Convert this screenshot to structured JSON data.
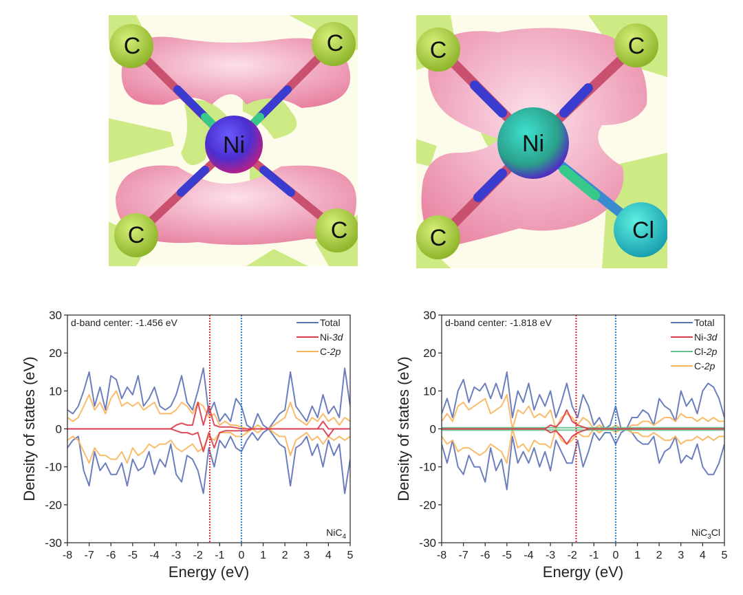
{
  "structures": [
    {
      "name": "NiC4",
      "atoms": [
        "C",
        "C",
        "C",
        "C",
        "Ni"
      ]
    },
    {
      "name": "NiC3Cl",
      "atoms": [
        "C",
        "C",
        "C",
        "Ni",
        "Cl"
      ]
    }
  ],
  "chart_data": [
    {
      "type": "line",
      "xlabel": "Energy (eV)",
      "ylabel": "Density of states (eV)",
      "xlim": [
        -8,
        5
      ],
      "ylim": [
        -30,
        30
      ],
      "xticks": [
        -8,
        -7,
        -6,
        -5,
        -4,
        -3,
        -2,
        -1,
        0,
        1,
        2,
        3,
        4,
        5
      ],
      "yticks": [
        30,
        20,
        10,
        0,
        -10,
        -20,
        -30
      ],
      "annotation": "d-band center: -1.456 eV",
      "d_band_center": -1.456,
      "fermi_level": 0,
      "sample_label": "NiC",
      "sample_sub": "4",
      "sample_tail": "",
      "legend_position": "top-right",
      "x_start": -8,
      "x_step": 0.25,
      "series": [
        {
          "name": "Total",
          "label_main": "Total",
          "label_it": "",
          "color": "#5b6fb5",
          "up": [
            5,
            4,
            6,
            10,
            15,
            6,
            11,
            5,
            14,
            13,
            8,
            11,
            9,
            14,
            6,
            8,
            11,
            6,
            5,
            6,
            9,
            14,
            7,
            5,
            10,
            16,
            4,
            7,
            2,
            4,
            2,
            8,
            6,
            1,
            0,
            4,
            1,
            0,
            2,
            4,
            5,
            15,
            6,
            4,
            2,
            6,
            3,
            9,
            4,
            6,
            3,
            16,
            6
          ],
          "down": [
            -5,
            -3,
            -2,
            -11,
            -15,
            -6,
            -11,
            -9,
            -12,
            -12,
            -9,
            -15,
            -8,
            -11,
            -10,
            -6,
            -12,
            -8,
            -10,
            -4,
            -12,
            -14,
            -7,
            -8,
            -11,
            -17,
            -5,
            -10,
            -3,
            -5,
            -2,
            -5,
            -6,
            -3,
            -1,
            -3,
            -1,
            0,
            -2,
            -4,
            -5,
            -15,
            -5,
            -4,
            -2,
            -7,
            -4,
            -10,
            -3,
            -7,
            -4,
            -17,
            -8
          ]
        },
        {
          "name": "C-2p",
          "label_main": "C-",
          "label_it": "2p",
          "color": "#f9b45a",
          "up": [
            3,
            2,
            3,
            6,
            9,
            5,
            7,
            4,
            8,
            10,
            6,
            7,
            6,
            7,
            5,
            6,
            7,
            4,
            4,
            4,
            5,
            7,
            6,
            4,
            7,
            6,
            3,
            4,
            1,
            2,
            1,
            1,
            0.5,
            0,
            0,
            1,
            0,
            0,
            1,
            2,
            3,
            7,
            3,
            2,
            1,
            3,
            2,
            4,
            2,
            3,
            1,
            3,
            2
          ],
          "down": [
            -3,
            -2,
            -3,
            -6,
            -9,
            -5,
            -7,
            -7,
            -8,
            -8,
            -6,
            -9,
            -5,
            -7,
            -6,
            -4,
            -5,
            -4,
            -4,
            -3,
            -5,
            -6,
            -5,
            -4,
            -6,
            -5,
            -2,
            -3,
            -1,
            -1,
            -1,
            -2,
            -2,
            -1,
            0,
            -1,
            0,
            0,
            -1,
            -2,
            -2,
            -7,
            -3,
            -2,
            -1,
            -3,
            -2,
            -4,
            -2,
            -3,
            -2,
            -3,
            -2
          ]
        },
        {
          "name": "Ni-3d",
          "label_main": "Ni-",
          "label_it": "3d",
          "color": "#d9394a",
          "up": [
            0,
            0,
            0,
            0,
            0,
            0,
            0,
            0,
            0,
            0,
            0,
            0,
            0,
            0,
            0,
            0,
            0,
            0,
            0,
            0,
            1,
            1.5,
            1,
            1,
            7,
            1,
            6,
            1,
            0.5,
            0.5,
            0.5,
            0.3,
            0,
            0,
            0,
            0,
            0,
            0,
            0,
            0,
            0,
            0,
            0,
            0,
            0,
            0,
            0,
            2,
            0,
            0,
            0,
            0,
            0
          ],
          "down": [
            0,
            0,
            0,
            0,
            0,
            0,
            0,
            0,
            0,
            0,
            0,
            0,
            0,
            0,
            0,
            0,
            0,
            0,
            0,
            0,
            -0.5,
            -1,
            -1,
            -1.5,
            -1,
            -6,
            -1,
            -5,
            -1,
            -0.5,
            -0.5,
            -0.5,
            -0.5,
            -0.5,
            0,
            0,
            0,
            0,
            0,
            0,
            0,
            0,
            0,
            0,
            0,
            0,
            0,
            0,
            -2,
            0,
            0,
            0,
            0
          ]
        }
      ],
      "legend_order": [
        "Total",
        "Ni-3d",
        "C-2p"
      ]
    },
    {
      "type": "line",
      "xlabel": "Energy (eV)",
      "ylabel": "Density of states (eV)",
      "xlim": [
        -8,
        5
      ],
      "ylim": [
        -30,
        30
      ],
      "xticks": [
        -8,
        -7,
        -6,
        -5,
        -4,
        -3,
        -2,
        -1,
        0,
        1,
        2,
        3,
        4,
        5
      ],
      "yticks": [
        30,
        20,
        10,
        0,
        -10,
        -20,
        -30
      ],
      "annotation": "d-band center: -1.818 eV",
      "d_band_center": -1.818,
      "fermi_level": 0,
      "sample_label": "NiC",
      "sample_sub": "3",
      "sample_tail": "Cl",
      "legend_position": "top-right",
      "x_start": -8,
      "x_step": 0.25,
      "series": [
        {
          "name": "Total",
          "label_main": "Total",
          "label_it": "",
          "color": "#5b6fb5",
          "up": [
            4,
            8,
            3,
            10,
            13,
            7,
            11,
            10,
            12,
            8,
            12,
            8,
            15,
            3,
            10,
            7,
            12,
            5,
            9,
            6,
            10,
            3,
            7,
            12,
            6,
            3,
            9,
            6,
            1,
            3,
            0,
            1,
            6,
            0,
            0,
            3,
            3,
            5,
            4,
            1,
            8,
            6,
            5,
            2,
            10,
            6,
            8,
            4,
            10,
            12,
            11,
            8,
            3
          ],
          "down": [
            -4,
            -9,
            -3,
            -10,
            -12,
            -7,
            -10,
            -10,
            -14,
            -5,
            -11,
            -8,
            -16,
            -2,
            -9,
            -6,
            -9,
            -5,
            -10,
            -6,
            -11,
            -3,
            -6,
            -9,
            -9,
            -3,
            -10,
            -6,
            -1,
            -3,
            -1,
            -1,
            -4,
            -1,
            0,
            -1,
            -3,
            -4,
            -4,
            -2,
            -9,
            -6,
            -5,
            -2,
            -9,
            -7,
            -8,
            -4,
            -10,
            -12,
            -12,
            -9,
            -4
          ]
        },
        {
          "name": "C-2p",
          "label_main": "C-",
          "label_it": "2p",
          "color": "#f9b45a",
          "up": [
            2,
            4,
            2,
            6,
            7,
            5,
            6,
            7,
            8,
            4,
            5,
            6,
            9,
            0,
            5,
            4,
            6,
            3,
            4,
            3,
            5,
            0,
            3,
            4,
            3,
            1,
            3,
            2,
            0,
            1,
            0,
            0,
            1,
            0,
            0,
            1,
            1,
            2,
            2,
            1,
            2,
            3,
            3,
            2,
            4,
            3,
            3,
            2,
            3,
            2,
            3,
            2,
            2
          ],
          "down": [
            -2,
            -4,
            -3,
            -6,
            -5,
            -5,
            -6,
            -7,
            -6,
            -4,
            -5,
            -6,
            -9,
            0,
            -5,
            -4,
            -6,
            -3,
            -4,
            -4,
            -5,
            0,
            -3,
            -4,
            -3,
            -1,
            -2,
            -2,
            0,
            -1,
            0,
            0,
            -1,
            0,
            0,
            -1,
            -1,
            -2,
            -2,
            -1,
            -2,
            -3,
            -3,
            -2,
            -4,
            -3,
            -3,
            -2,
            -3,
            -2,
            -3,
            -2,
            -2
          ]
        },
        {
          "name": "Cl-2p",
          "label_main": "Cl-",
          "label_it": "2p",
          "color": "#5fc28a",
          "up": 0.3,
          "down": -0.3
        },
        {
          "name": "Ni-3d",
          "label_main": "Ni-",
          "label_it": "3d",
          "color": "#d9394a",
          "up": [
            0,
            0,
            0,
            0,
            0,
            0,
            0,
            0,
            0,
            0,
            0,
            0,
            0,
            0,
            0,
            0,
            0,
            0,
            0,
            0,
            1,
            0.5,
            2,
            5,
            2,
            1,
            0.5,
            0,
            0,
            0,
            0,
            0,
            0,
            0,
            0,
            0,
            0,
            0,
            0,
            0,
            0,
            0,
            0,
            0,
            0,
            0,
            0,
            0,
            0,
            0,
            0,
            0,
            0
          ],
          "down": [
            0,
            0,
            0,
            0,
            0,
            0,
            0,
            0,
            0,
            0,
            0,
            0,
            0,
            0,
            0,
            0,
            0,
            0,
            0,
            0,
            -1,
            -0.5,
            -2,
            -4,
            -2,
            -1,
            -0.5,
            0,
            0,
            0,
            0,
            0,
            0,
            0,
            0,
            0,
            0,
            0,
            0,
            0,
            0,
            0,
            0,
            0,
            0,
            0,
            0,
            0,
            0,
            0,
            0,
            0,
            0
          ]
        }
      ],
      "legend_order": [
        "Total",
        "Ni-3d",
        "Cl-2p",
        "C-2p"
      ]
    }
  ]
}
